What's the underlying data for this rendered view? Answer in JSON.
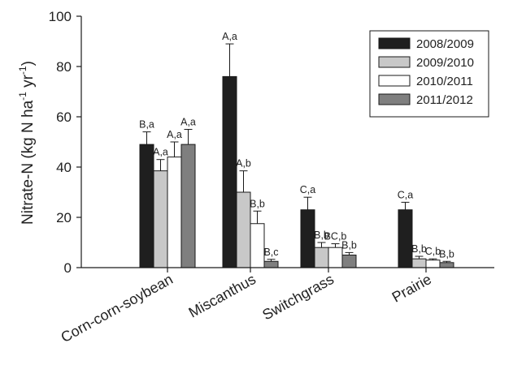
{
  "chart_data": {
    "type": "bar",
    "title": "",
    "ylabel_parts": {
      "base": "Nitrate-N (kg N ha",
      "sup1": "-1",
      "mid": " yr",
      "sup2": "-1",
      "end": ")"
    },
    "xlabel": "",
    "ylim": [
      0,
      100
    ],
    "yticks": [
      "0",
      "20",
      "40",
      "60",
      "80",
      "100"
    ],
    "grid": false,
    "legend_position": "top-right",
    "categories": [
      "Corn-corn-soybean",
      "Miscanthus",
      "Switchgrass",
      "Prairie"
    ],
    "series": [
      {
        "name": "2008/2009",
        "color": "#1f1f1f",
        "values": [
          49,
          76,
          23,
          23
        ],
        "errors": [
          5,
          13,
          5,
          3
        ],
        "labels": [
          "B,a",
          "A,a",
          "C,a",
          "C,a"
        ]
      },
      {
        "name": "2009/2010",
        "color": "#c8c8c8",
        "values": [
          38.5,
          30,
          8,
          3.5
        ],
        "errors": [
          4.5,
          8.5,
          2,
          1
        ],
        "labels": [
          "A,a",
          "A,b",
          "B,b",
          "B,b"
        ]
      },
      {
        "name": "2010/2011",
        "color": "#ffffff",
        "values": [
          44,
          17.5,
          8,
          3
        ],
        "errors": [
          6,
          5,
          1.5,
          0.5
        ],
        "labels": [
          "A,a",
          "B,b",
          "BC,b",
          "C,b"
        ]
      },
      {
        "name": "2011/2012",
        "color": "#7f7f7f",
        "values": [
          49,
          2.5,
          5,
          2
        ],
        "errors": [
          6,
          0.8,
          1,
          0.5
        ],
        "labels": [
          "A,a",
          "B,c",
          "B,b",
          "B,b"
        ]
      }
    ]
  }
}
